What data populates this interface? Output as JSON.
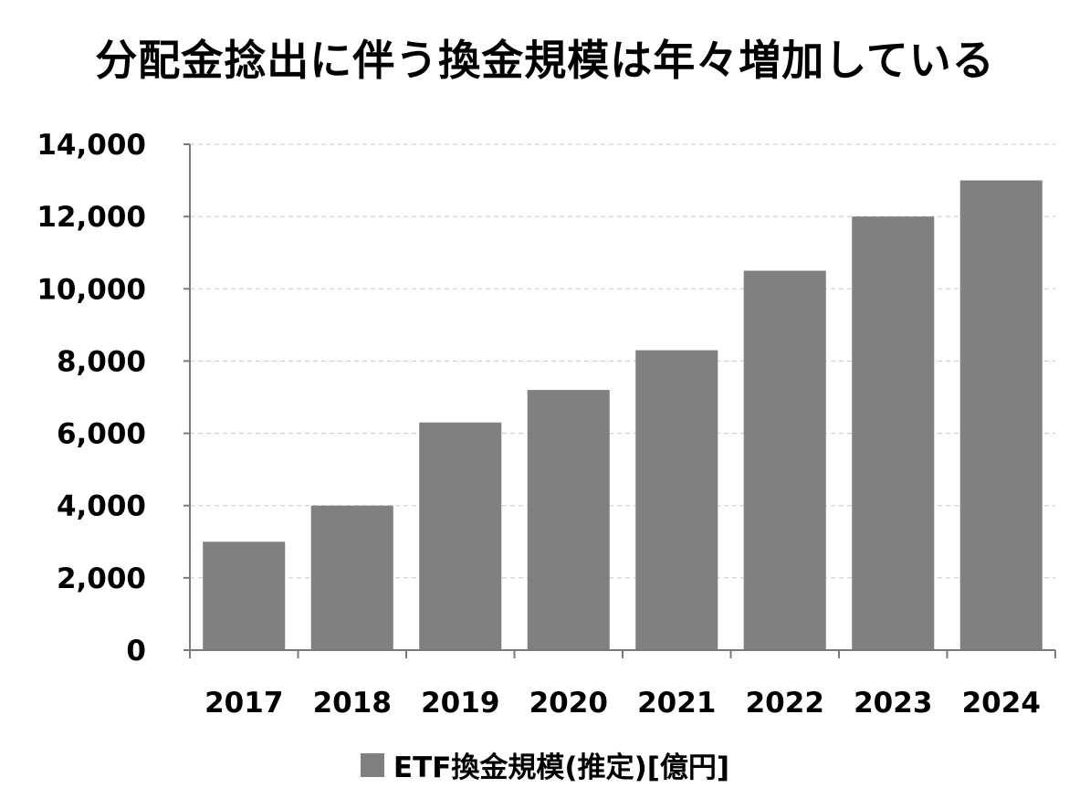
{
  "chart_data": {
    "type": "bar",
    "title": "分配金捻出に伴う換金規模は年々増加している",
    "categories": [
      "2017",
      "2018",
      "2019",
      "2020",
      "2021",
      "2022",
      "2023",
      "2024"
    ],
    "series": [
      {
        "name": "ETF換金規模(推定)[億円]",
        "values": [
          3000,
          4000,
          6300,
          7200,
          8300,
          10500,
          12000,
          13000
        ]
      }
    ],
    "ylim": [
      0,
      14000
    ],
    "yticks": [
      0,
      2000,
      4000,
      6000,
      8000,
      10000,
      12000,
      14000
    ],
    "ytick_labels": [
      "0",
      "2,000",
      "4,000",
      "6,000",
      "8,000",
      "10,000",
      "12,000",
      "14,000"
    ],
    "xlabel": "",
    "ylabel": "",
    "grid": true,
    "legend_position": "bottom",
    "bar_color": "#808080",
    "grid_color": "#c8c8c8"
  }
}
